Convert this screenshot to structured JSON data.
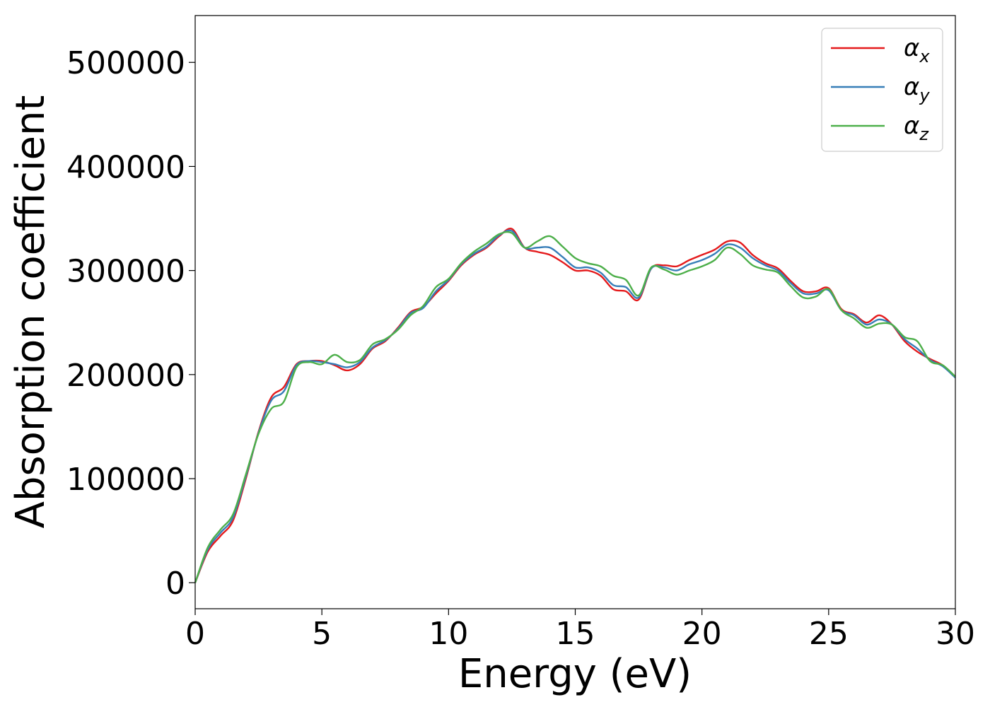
{
  "chart_data": {
    "type": "line",
    "xlabel": "Energy (eV)",
    "ylabel": "Absorption coefficient",
    "xlim": [
      0,
      30
    ],
    "ylim": [
      -25000,
      545000
    ],
    "xticks": [
      0,
      5,
      10,
      15,
      20,
      25,
      30
    ],
    "xtick_labels": [
      "0",
      "5",
      "10",
      "15",
      "20",
      "25",
      "30"
    ],
    "yticks": [
      0,
      100000,
      200000,
      300000,
      400000,
      500000
    ],
    "ytick_labels": [
      "0",
      "100000",
      "200000",
      "300000",
      "400000",
      "500000"
    ],
    "grid": false,
    "legend": "top-right",
    "x": [
      0,
      0.5,
      1,
      1.5,
      2,
      2.5,
      3,
      3.5,
      4,
      4.5,
      5,
      5.5,
      6,
      6.5,
      7,
      7.5,
      8,
      8.5,
      9,
      9.5,
      10,
      10.5,
      11,
      11.5,
      12,
      12.5,
      13,
      13.5,
      14,
      14.5,
      15,
      15.5,
      16,
      16.5,
      17,
      17.5,
      18,
      18.5,
      19,
      19.5,
      20,
      20.5,
      21,
      21.5,
      22,
      22.5,
      23,
      23.5,
      24,
      24.5,
      25,
      25.5,
      26,
      26.5,
      27,
      27.5,
      28,
      28.5,
      29,
      29.5,
      30
    ],
    "series": [
      {
        "name": "α_x",
        "sub": "x",
        "color": "#e41a1c",
        "values": [
          0,
          30000,
          45000,
          60000,
          100000,
          145000,
          178000,
          188000,
          210000,
          213000,
          213000,
          209000,
          204000,
          210000,
          225000,
          232000,
          245000,
          260000,
          265000,
          278000,
          290000,
          305000,
          315000,
          322000,
          333000,
          340000,
          322000,
          318000,
          315000,
          308000,
          300000,
          300000,
          295000,
          282000,
          280000,
          272000,
          302000,
          305000,
          304000,
          310000,
          315000,
          320000,
          328000,
          327000,
          315000,
          307000,
          302000,
          290000,
          280000,
          280000,
          283000,
          263000,
          258000,
          250000,
          257000,
          248000,
          232000,
          222000,
          215000,
          209000,
          198000
        ]
      },
      {
        "name": "α_y",
        "sub": "y",
        "color": "#377eb8",
        "values": [
          0,
          32000,
          48000,
          63000,
          102000,
          144000,
          175000,
          184000,
          209000,
          213000,
          212000,
          210000,
          207000,
          212000,
          226000,
          233000,
          244000,
          259000,
          264000,
          280000,
          291000,
          306000,
          316000,
          323000,
          334000,
          338000,
          322000,
          322000,
          322000,
          313000,
          303000,
          303000,
          298000,
          286000,
          284000,
          274000,
          302000,
          303000,
          300000,
          306000,
          310000,
          316000,
          325000,
          322000,
          312000,
          305000,
          300000,
          288000,
          278000,
          278000,
          281000,
          262000,
          257000,
          248000,
          253000,
          248000,
          234000,
          225000,
          214000,
          208000,
          197000
        ]
      },
      {
        "name": "α_z",
        "sub": "z",
        "color": "#4daf4a",
        "values": [
          0,
          34000,
          51000,
          66000,
          104000,
          143000,
          167000,
          174000,
          207000,
          212000,
          210000,
          219000,
          212000,
          214000,
          229000,
          234000,
          243000,
          257000,
          266000,
          284000,
          292000,
          307000,
          318000,
          326000,
          335000,
          336000,
          322000,
          328000,
          333000,
          323000,
          312000,
          307000,
          304000,
          295000,
          291000,
          276000,
          303000,
          301000,
          296000,
          300000,
          304000,
          310000,
          322000,
          316000,
          305000,
          301000,
          298000,
          285000,
          274000,
          275000,
          282000,
          262000,
          254000,
          245000,
          249000,
          248000,
          236000,
          232000,
          213000,
          209000,
          198000
        ]
      }
    ]
  }
}
